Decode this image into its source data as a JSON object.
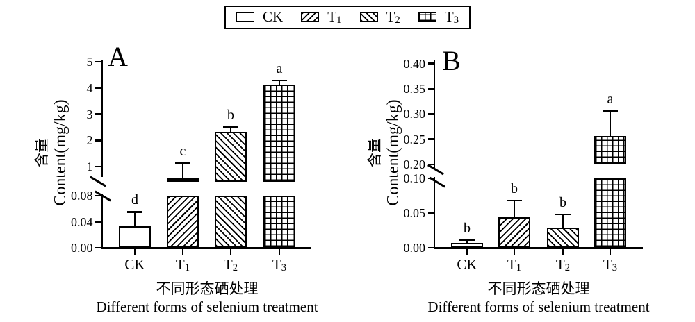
{
  "legend": {
    "items": [
      {
        "base": "CK",
        "sub": "",
        "pattern": "plain"
      },
      {
        "base": "T",
        "sub": "1",
        "pattern": "hatch-fwd"
      },
      {
        "base": "T",
        "sub": "2",
        "pattern": "hatch-back"
      },
      {
        "base": "T",
        "sub": "3",
        "pattern": "grid"
      }
    ]
  },
  "chart_data": [
    {
      "panel": "A",
      "panel_letter": "A",
      "type": "bar",
      "categories": [
        {
          "base": "CK",
          "sub": ""
        },
        {
          "base": "T",
          "sub": "1"
        },
        {
          "base": "T",
          "sub": "2"
        },
        {
          "base": "T",
          "sub": "3"
        }
      ],
      "series": [
        {
          "name": "content",
          "values": [
            0.033,
            0.55,
            2.32,
            4.13
          ]
        }
      ],
      "error_top": [
        0.055,
        1.13,
        2.51,
        4.28
      ],
      "sig_letters": [
        "d",
        "c",
        "b",
        "a"
      ],
      "patterns": [
        "plain",
        "hatch-fwd",
        "hatch-back",
        "grid"
      ],
      "ylabel_cn": "含量",
      "ylabel_en": "Content(mg/kg)",
      "xlabel_cn": "不同形态硒处理",
      "xlabel_en": "Different forms of selenium treatment",
      "axis": {
        "lower": {
          "ticks": [
            0,
            0.04,
            0.08
          ],
          "tick_labels": [
            "0.00",
            "0.04",
            "0.08"
          ],
          "range": [
            0,
            0.08
          ]
        },
        "upper": {
          "ticks": [
            1,
            2,
            3,
            4,
            5
          ],
          "tick_labels": [
            "1",
            "2",
            "3",
            "4",
            "5"
          ],
          "range": [
            1,
            5
          ]
        }
      },
      "broken_axis": true,
      "grid": "off"
    },
    {
      "panel": "B",
      "panel_letter": "B",
      "type": "bar",
      "categories": [
        {
          "base": "CK",
          "sub": ""
        },
        {
          "base": "T",
          "sub": "1"
        },
        {
          "base": "T",
          "sub": "2"
        },
        {
          "base": "T",
          "sub": "3"
        }
      ],
      "series": [
        {
          "name": "content",
          "values": [
            0.007,
            0.044,
            0.029,
            0.256
          ]
        }
      ],
      "error_top": [
        0.011,
        0.068,
        0.048,
        0.306
      ],
      "sig_letters": [
        "b",
        "b",
        "b",
        "a"
      ],
      "patterns": [
        "plain",
        "hatch-fwd",
        "hatch-back",
        "grid"
      ],
      "ylabel_cn": "含量",
      "ylabel_en": "Content(mg/kg)",
      "xlabel_cn": "不同形态硒处理",
      "xlabel_en": "Different forms of selenium treatment",
      "axis": {
        "lower": {
          "ticks": [
            0,
            0.05,
            0.1
          ],
          "tick_labels": [
            "0.00",
            "0.05",
            "0.10"
          ],
          "range": [
            0,
            0.1
          ]
        },
        "upper": {
          "ticks": [
            0.2,
            0.25,
            0.3,
            0.35,
            0.4
          ],
          "tick_labels": [
            "0.20",
            "0.25",
            "0.30",
            "0.35",
            "0.40"
          ],
          "range": [
            0.2,
            0.4
          ]
        }
      },
      "broken_axis": true,
      "grid": "off"
    }
  ]
}
